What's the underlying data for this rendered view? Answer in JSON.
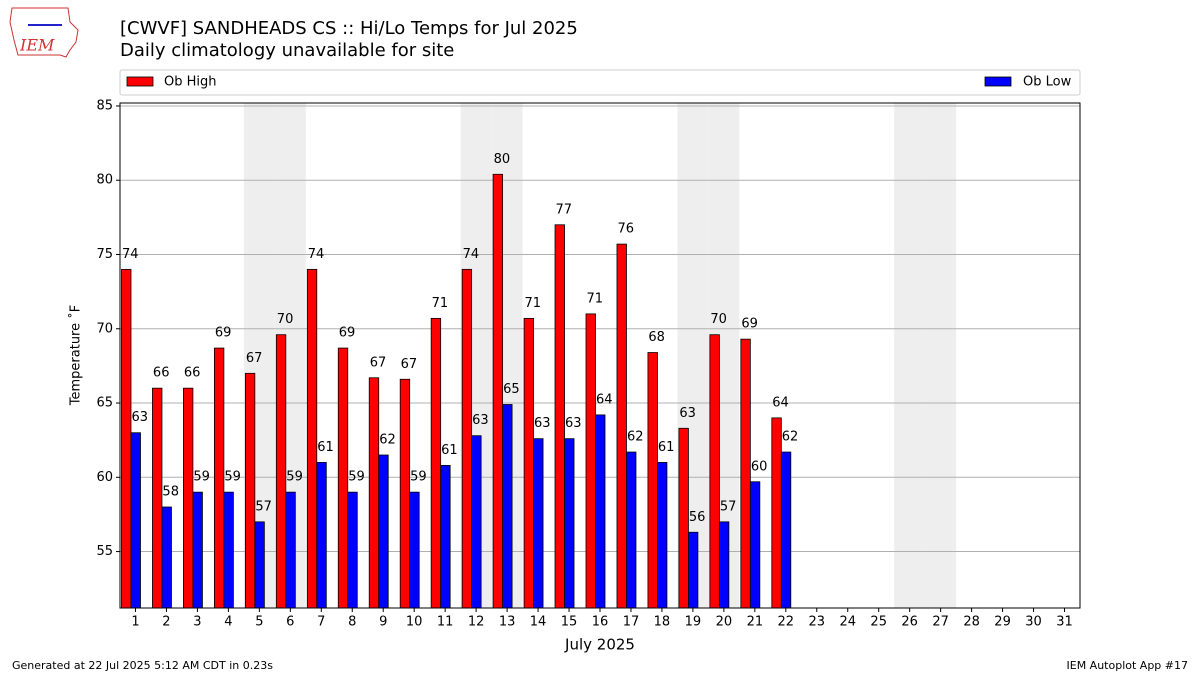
{
  "chart_data": {
    "type": "bar",
    "title": "[CWVF] SANDHEADS CS :: Hi/Lo Temps for Jul 2025",
    "subtitle": "Daily climatology unavailable for site",
    "logo_text": "IEM",
    "x_label": "July 2025",
    "y_label": "Temperature ˚F",
    "footer_left": "Generated at 22 Jul 2025 5:12 AM CDT in 0.23s",
    "footer_right": "IEM Autoplot App #17",
    "categories": [
      "1",
      "2",
      "3",
      "4",
      "5",
      "6",
      "7",
      "8",
      "9",
      "10",
      "11",
      "12",
      "13",
      "14",
      "15",
      "16",
      "17",
      "18",
      "19",
      "20",
      "21",
      "22",
      "23",
      "24",
      "25",
      "26",
      "27",
      "28",
      "29",
      "30",
      "31"
    ],
    "shaded_categories": [
      "5",
      "6",
      "12",
      "13",
      "19",
      "20",
      "26",
      "27"
    ],
    "series": [
      {
        "name": "Ob High",
        "color": "#ff0000",
        "values": [
          74,
          66,
          66,
          68.7,
          67,
          69.6,
          74,
          68.7,
          66.7,
          66.6,
          70.7,
          74,
          80.4,
          70.7,
          77,
          71,
          75.7,
          68.4,
          63.3,
          69.6,
          69.3,
          64,
          null,
          null,
          null,
          null,
          null,
          null,
          null,
          null,
          null
        ],
        "value_labels": [
          "74",
          "66",
          "66",
          "69",
          "67",
          "70",
          "74",
          "69",
          "67",
          "67",
          "71",
          "74",
          "80",
          "71",
          "77",
          "71",
          "76",
          "68",
          "63",
          "70",
          "69",
          "64",
          null,
          null,
          null,
          null,
          null,
          null,
          null,
          null,
          null
        ]
      },
      {
        "name": "Ob Low",
        "color": "#0000ff",
        "values": [
          63,
          58,
          59,
          59,
          57,
          59,
          61,
          59,
          61.5,
          59,
          60.8,
          62.8,
          64.9,
          62.6,
          62.6,
          64.2,
          61.7,
          61,
          56.3,
          57,
          59.7,
          61.7,
          null,
          null,
          null,
          null,
          null,
          null,
          null,
          null,
          null
        ],
        "value_labels": [
          "63",
          "58",
          "59",
          "59",
          "57",
          "59",
          "61",
          "59",
          "62",
          "59",
          "61",
          "63",
          "65",
          "63",
          "63",
          "64",
          "62",
          "61",
          "56",
          "57",
          "60",
          "62",
          null,
          null,
          null,
          null,
          null,
          null,
          null,
          null,
          null
        ]
      }
    ],
    "ylim": [
      51.2,
      85.2
    ],
    "yticks": [
      55,
      60,
      65,
      70,
      75,
      80,
      85
    ],
    "grid": true
  }
}
